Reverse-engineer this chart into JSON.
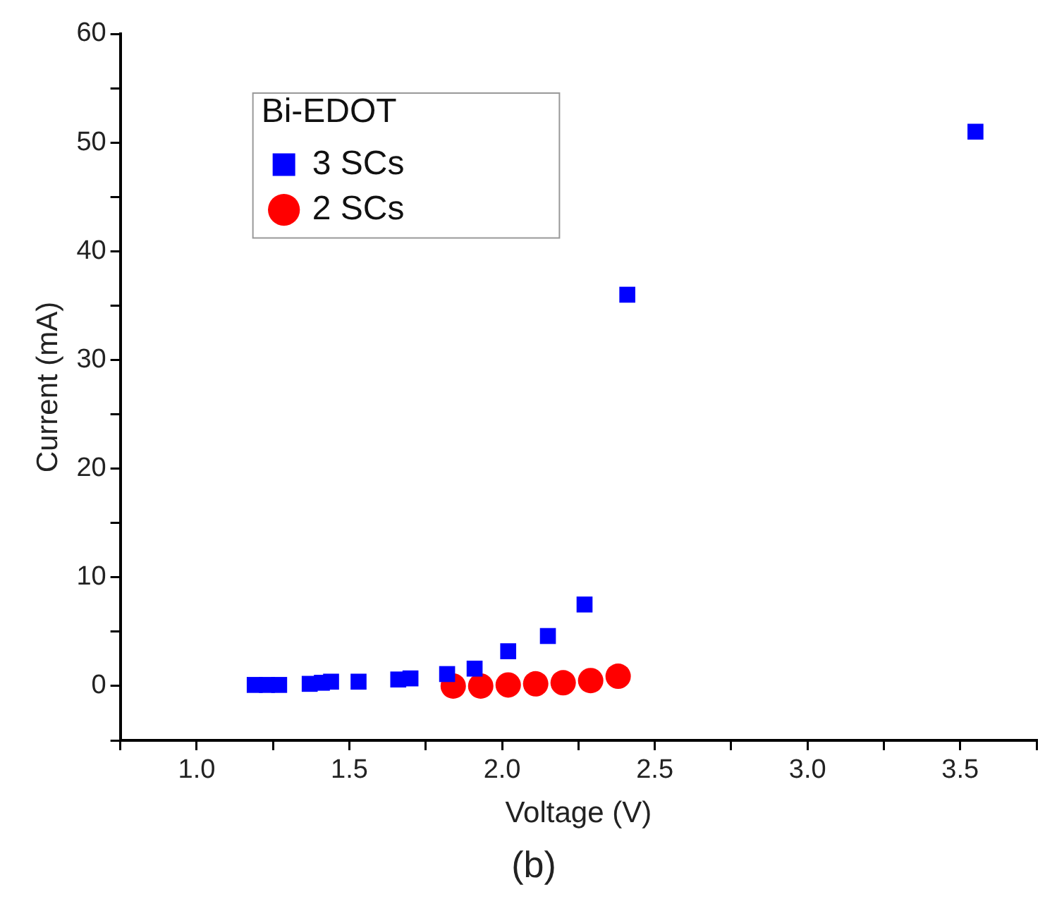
{
  "chart_data": {
    "type": "scatter",
    "xlabel": "Voltage (V)",
    "ylabel": "Current (mA)",
    "legend_title": "Bi-EDOT",
    "annotations": [
      "(b)"
    ],
    "xlim": [
      0.75,
      3.75
    ],
    "ylim": [
      -5,
      60
    ],
    "xticks": [
      {
        "value": 0.75,
        "label": null
      },
      {
        "value": 1,
        "label": "1.0"
      },
      {
        "value": 1.25,
        "label": null
      },
      1.5,
      {
        "value": 1.75,
        "label": null
      },
      {
        "value": 2,
        "label": "2.0"
      },
      {
        "value": 2.25,
        "label": null
      },
      2.5,
      {
        "value": 2.75,
        "label": null
      },
      {
        "value": 3,
        "label": "3.0"
      },
      {
        "value": 3.25,
        "label": null
      },
      3.5,
      {
        "value": 3.75,
        "label": null
      }
    ],
    "yticks": [
      {
        "value": -5,
        "label": null
      },
      0,
      {
        "value": 5,
        "label": null
      },
      10,
      {
        "value": 15,
        "label": null
      },
      20,
      {
        "value": 25,
        "label": null
      },
      30,
      {
        "value": 35,
        "label": null
      },
      40,
      {
        "value": 45,
        "label": null
      },
      50,
      {
        "value": 55,
        "label": null
      },
      60
    ],
    "grid": false,
    "legend": "top left",
    "series": [
      {
        "name": "3 SCs",
        "color": "#0000ff",
        "marker": "square",
        "x": [
          1.19,
          1.23,
          1.27,
          1.37,
          1.41,
          1.44,
          1.53,
          1.66,
          1.7,
          1.82,
          1.91,
          2.02,
          2.15,
          2.27,
          2.41,
          3.55
        ],
        "values": [
          0.1,
          0.1,
          0.1,
          0.2,
          0.3,
          0.4,
          0.4,
          0.6,
          0.7,
          1.1,
          1.6,
          3.2,
          4.6,
          7.5,
          36,
          51
        ]
      },
      {
        "name": "2 SCs",
        "color": "#ff0000",
        "marker": "circle",
        "x": [
          1.84,
          1.93,
          2.02,
          2.11,
          2.2,
          2.29,
          2.38
        ],
        "values": [
          0,
          0,
          0.1,
          0.2,
          0.3,
          0.5,
          0.9
        ]
      }
    ]
  }
}
